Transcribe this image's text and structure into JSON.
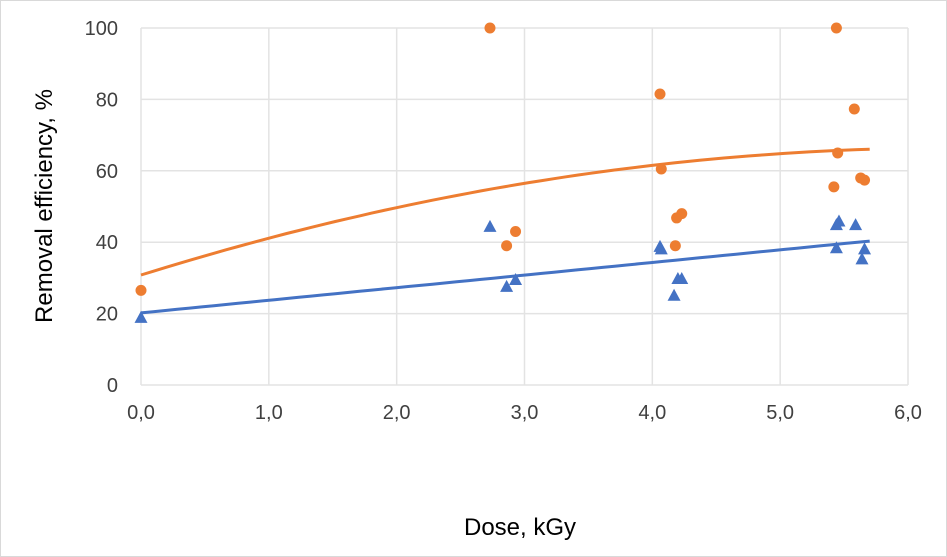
{
  "chart_data": {
    "type": "scatter",
    "title": "",
    "xlabel": "Dose, kGy",
    "ylabel": "Removal efficiency, %",
    "xlim": [
      0,
      6
    ],
    "ylim": [
      0,
      100
    ],
    "xticks": [
      "0,0",
      "1,0",
      "2,0",
      "3,0",
      "4,0",
      "5,0",
      "6,0"
    ],
    "yticks": [
      "0",
      "20",
      "40",
      "60",
      "80",
      "100"
    ],
    "grid": true,
    "legend": "none",
    "series": [
      {
        "marker": "circle",
        "color": "#ED7D31",
        "points": [
          [
            0.0,
            26.5
          ],
          [
            2.73,
            100
          ],
          [
            2.86,
            39
          ],
          [
            2.93,
            43
          ],
          [
            4.06,
            81.5
          ],
          [
            4.07,
            60.5
          ],
          [
            4.19,
            46.8
          ],
          [
            4.23,
            48
          ],
          [
            4.18,
            39
          ],
          [
            5.44,
            100
          ],
          [
            5.42,
            55.5
          ],
          [
            5.45,
            65
          ],
          [
            5.58,
            77.3
          ],
          [
            5.63,
            58
          ],
          [
            5.66,
            57.4
          ]
        ],
        "trendline": {
          "type": "polynomial",
          "coefficients": [
            30.8,
            11.2,
            -0.88
          ],
          "x_range": [
            0,
            5.7
          ]
        }
      },
      {
        "marker": "triangle",
        "color": "#4472C4",
        "points": [
          [
            0.0,
            18.8
          ],
          [
            2.73,
            44.3
          ],
          [
            2.86,
            27.5
          ],
          [
            2.93,
            29.4
          ],
          [
            4.06,
            38.7
          ],
          [
            4.07,
            38
          ],
          [
            4.17,
            25
          ],
          [
            4.2,
            29.7
          ],
          [
            4.23,
            29.7
          ],
          [
            5.44,
            44.8
          ],
          [
            5.46,
            45.8
          ],
          [
            5.59,
            44.8
          ],
          [
            5.44,
            38.3
          ],
          [
            5.64,
            35.2
          ],
          [
            5.66,
            38
          ]
        ],
        "trendline": {
          "type": "linear",
          "coefficients": [
            20.2,
            3.53
          ],
          "x_range": [
            0,
            5.7
          ]
        }
      }
    ]
  }
}
